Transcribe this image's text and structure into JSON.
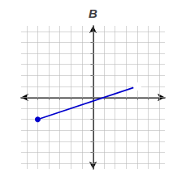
{
  "chart_data": {
    "type": "line",
    "title": "B",
    "x": [
      -5,
      4
    ],
    "values": [
      -2,
      1
    ],
    "color": "#0000cc",
    "marker": "circle",
    "xlim": [
      -6.5,
      6.5
    ],
    "ylim": [
      -6.5,
      6.5
    ],
    "xticks": [
      -6,
      -5,
      -4,
      -3,
      -2,
      -1,
      0,
      1,
      2,
      3,
      4,
      5,
      6
    ],
    "yticks": [
      -6,
      -5,
      -4,
      -3,
      -2,
      -1,
      0,
      1,
      2,
      3,
      4,
      5,
      6
    ],
    "grid": true,
    "tick_labels": false
  }
}
